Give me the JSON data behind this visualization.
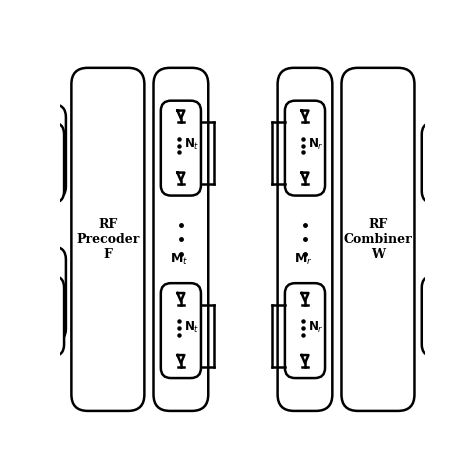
{
  "bg_color": "#ffffff",
  "line_color": "#000000",
  "fig_size": [
    4.74,
    4.74
  ],
  "dpi": 100,
  "rf_precoder_label": "RF\nPrecoder\nF",
  "rf_combiner_label": "RF\nCombiner\nW"
}
